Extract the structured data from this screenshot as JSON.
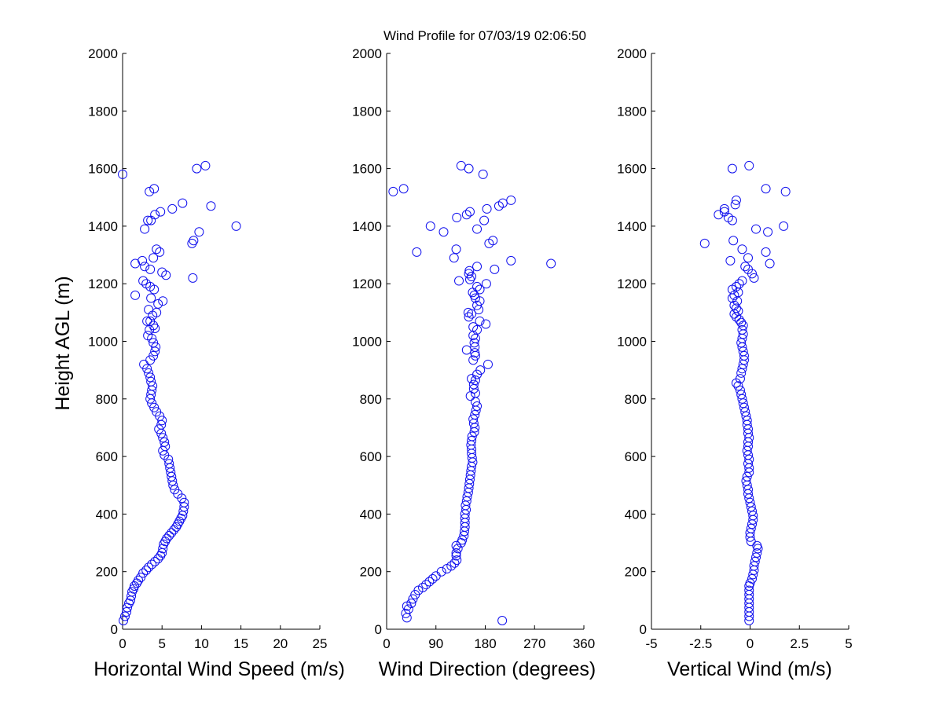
{
  "chart_data": [
    {
      "type": "scatter",
      "title": "Wind Profile for  07/03/19 02:06:50",
      "xlabel": "Horizontal Wind Speed (m/s)",
      "ylabel": "Height AGL (m)",
      "xlim": [
        0,
        25
      ],
      "ylim": [
        0,
        2000
      ],
      "xticks": [
        "0",
        "5",
        "10",
        "15",
        "20",
        "25"
      ],
      "yticks": [
        "0",
        "200",
        "400",
        "600",
        "800",
        "1000",
        "1200",
        "1400",
        "1600",
        "1800",
        "2000"
      ],
      "marker": "circle",
      "color": "#1010ee",
      "points": [
        [
          0.1,
          30
        ],
        [
          0.3,
          45
        ],
        [
          0.5,
          60
        ],
        [
          0.6,
          75
        ],
        [
          0.8,
          90
        ],
        [
          1.0,
          100
        ],
        [
          1.1,
          115
        ],
        [
          1.2,
          130
        ],
        [
          1.4,
          140
        ],
        [
          1.5,
          150
        ],
        [
          1.8,
          160
        ],
        [
          2.0,
          170
        ],
        [
          2.3,
          180
        ],
        [
          2.6,
          195
        ],
        [
          3.0,
          205
        ],
        [
          3.3,
          215
        ],
        [
          3.7,
          225
        ],
        [
          4.1,
          235
        ],
        [
          4.5,
          245
        ],
        [
          4.8,
          255
        ],
        [
          5.0,
          265
        ],
        [
          5.1,
          280
        ],
        [
          5.2,
          295
        ],
        [
          5.4,
          305
        ],
        [
          5.6,
          315
        ],
        [
          5.9,
          325
        ],
        [
          6.2,
          335
        ],
        [
          6.5,
          345
        ],
        [
          6.8,
          355
        ],
        [
          7.0,
          365
        ],
        [
          7.2,
          375
        ],
        [
          7.4,
          385
        ],
        [
          7.6,
          395
        ],
        [
          7.7,
          410
        ],
        [
          7.8,
          425
        ],
        [
          7.8,
          440
        ],
        [
          7.5,
          455
        ],
        [
          7.0,
          470
        ],
        [
          6.6,
          485
        ],
        [
          6.4,
          500
        ],
        [
          6.3,
          515
        ],
        [
          6.2,
          530
        ],
        [
          6.1,
          545
        ],
        [
          6.0,
          560
        ],
        [
          5.9,
          575
        ],
        [
          5.8,
          590
        ],
        [
          5.3,
          605
        ],
        [
          5.1,
          620
        ],
        [
          5.4,
          635
        ],
        [
          5.3,
          650
        ],
        [
          5.1,
          665
        ],
        [
          4.9,
          680
        ],
        [
          4.6,
          695
        ],
        [
          4.9,
          710
        ],
        [
          5.0,
          725
        ],
        [
          4.7,
          740
        ],
        [
          4.3,
          755
        ],
        [
          4.0,
          770
        ],
        [
          3.7,
          785
        ],
        [
          3.5,
          800
        ],
        [
          3.6,
          815
        ],
        [
          3.7,
          830
        ],
        [
          3.8,
          845
        ],
        [
          3.6,
          860
        ],
        [
          3.5,
          875
        ],
        [
          3.3,
          890
        ],
        [
          3.1,
          905
        ],
        [
          2.7,
          920
        ],
        [
          3.5,
          935
        ],
        [
          3.9,
          950
        ],
        [
          4.1,
          965
        ],
        [
          4.2,
          980
        ],
        [
          3.9,
          995
        ],
        [
          3.7,
          1010
        ],
        [
          3.2,
          1020
        ],
        [
          3.4,
          1040
        ],
        [
          4.1,
          1045
        ],
        [
          3.9,
          1055
        ],
        [
          3.5,
          1070
        ],
        [
          3.1,
          1070
        ],
        [
          3.8,
          1090
        ],
        [
          4.3,
          1100
        ],
        [
          3.3,
          1110
        ],
        [
          4.5,
          1130
        ],
        [
          5.1,
          1140
        ],
        [
          3.6,
          1150
        ],
        [
          1.6,
          1160
        ],
        [
          4.0,
          1180
        ],
        [
          3.5,
          1190
        ],
        [
          3.0,
          1200
        ],
        [
          2.6,
          1210
        ],
        [
          8.9,
          1220
        ],
        [
          5.5,
          1230
        ],
        [
          5.0,
          1240
        ],
        [
          3.5,
          1250
        ],
        [
          2.8,
          1260
        ],
        [
          1.6,
          1270
        ],
        [
          2.5,
          1280
        ],
        [
          3.9,
          1290
        ],
        [
          4.7,
          1310
        ],
        [
          4.3,
          1320
        ],
        [
          8.8,
          1340
        ],
        [
          9.0,
          1350
        ],
        [
          9.7,
          1380
        ],
        [
          2.8,
          1390
        ],
        [
          14.4,
          1400
        ],
        [
          3.6,
          1420
        ],
        [
          3.2,
          1420
        ],
        [
          4.1,
          1440
        ],
        [
          4.8,
          1450
        ],
        [
          6.3,
          1460
        ],
        [
          11.2,
          1470
        ],
        [
          7.6,
          1480
        ],
        [
          3.4,
          1520
        ],
        [
          4.0,
          1530
        ],
        [
          0.0,
          1580
        ],
        [
          9.4,
          1600
        ],
        [
          10.5,
          1610
        ]
      ]
    },
    {
      "type": "scatter",
      "xlabel": "Wind Direction (degrees)",
      "xlim": [
        0,
        360
      ],
      "ylim": [
        0,
        2000
      ],
      "xticks": [
        "0",
        "90",
        "180",
        "270",
        "360"
      ],
      "yticks": [
        "0",
        "200",
        "400",
        "600",
        "800",
        "1000",
        "1200",
        "1400",
        "1600",
        "1800",
        "2000"
      ],
      "marker": "circle",
      "color": "#1010ee",
      "points": [
        [
          211,
          30
        ],
        [
          37,
          40
        ],
        [
          35,
          55
        ],
        [
          40,
          70
        ],
        [
          37,
          80
        ],
        [
          45,
          90
        ],
        [
          48,
          105
        ],
        [
          52,
          120
        ],
        [
          58,
          135
        ],
        [
          66,
          145
        ],
        [
          72,
          155
        ],
        [
          78,
          165
        ],
        [
          84,
          175
        ],
        [
          90,
          185
        ],
        [
          100,
          200
        ],
        [
          110,
          210
        ],
        [
          118,
          220
        ],
        [
          124,
          230
        ],
        [
          128,
          240
        ],
        [
          127,
          255
        ],
        [
          127,
          265
        ],
        [
          130,
          280
        ],
        [
          127,
          290
        ],
        [
          136,
          300
        ],
        [
          138,
          310
        ],
        [
          141,
          325
        ],
        [
          142,
          340
        ],
        [
          143,
          355
        ],
        [
          143,
          370
        ],
        [
          143,
          385
        ],
        [
          143,
          400
        ],
        [
          145,
          415
        ],
        [
          144,
          430
        ],
        [
          146,
          445
        ],
        [
          147,
          460
        ],
        [
          149,
          475
        ],
        [
          150,
          490
        ],
        [
          151,
          505
        ],
        [
          152,
          520
        ],
        [
          153,
          535
        ],
        [
          154,
          550
        ],
        [
          155,
          565
        ],
        [
          157,
          580
        ],
        [
          156,
          595
        ],
        [
          155,
          610
        ],
        [
          155,
          625
        ],
        [
          154,
          640
        ],
        [
          155,
          655
        ],
        [
          156,
          670
        ],
        [
          160,
          685
        ],
        [
          161,
          700
        ],
        [
          159,
          715
        ],
        [
          158,
          730
        ],
        [
          161,
          745
        ],
        [
          163,
          760
        ],
        [
          165,
          775
        ],
        [
          162,
          790
        ],
        [
          153,
          810
        ],
        [
          162,
          820
        ],
        [
          159,
          835
        ],
        [
          159,
          850
        ],
        [
          162,
          865
        ],
        [
          155,
          870
        ],
        [
          165,
          885
        ],
        [
          171,
          900
        ],
        [
          185,
          920
        ],
        [
          158,
          935
        ],
        [
          162,
          950
        ],
        [
          161,
          960
        ],
        [
          146,
          970
        ],
        [
          161,
          980
        ],
        [
          160,
          995
        ],
        [
          162,
          1010
        ],
        [
          158,
          1020
        ],
        [
          165,
          1040
        ],
        [
          158,
          1050
        ],
        [
          181,
          1060
        ],
        [
          170,
          1070
        ],
        [
          150,
          1085
        ],
        [
          155,
          1095
        ],
        [
          149,
          1100
        ],
        [
          168,
          1110
        ],
        [
          165,
          1125
        ],
        [
          170,
          1140
        ],
        [
          162,
          1150
        ],
        [
          160,
          1160
        ],
        [
          157,
          1170
        ],
        [
          170,
          1180
        ],
        [
          165,
          1190
        ],
        [
          182,
          1200
        ],
        [
          132,
          1210
        ],
        [
          152,
          1215
        ],
        [
          155,
          1225
        ],
        [
          150,
          1235
        ],
        [
          151,
          1245
        ],
        [
          197,
          1250
        ],
        [
          165,
          1260
        ],
        [
          300,
          1270
        ],
        [
          227,
          1280
        ],
        [
          123,
          1290
        ],
        [
          55,
          1310
        ],
        [
          127,
          1320
        ],
        [
          187,
          1340
        ],
        [
          194,
          1350
        ],
        [
          104,
          1380
        ],
        [
          165,
          1390
        ],
        [
          80,
          1400
        ],
        [
          178,
          1420
        ],
        [
          128,
          1430
        ],
        [
          146,
          1440
        ],
        [
          152,
          1450
        ],
        [
          183,
          1460
        ],
        [
          205,
          1470
        ],
        [
          212,
          1480
        ],
        [
          227,
          1490
        ],
        [
          12,
          1520
        ],
        [
          31,
          1530
        ],
        [
          176,
          1580
        ],
        [
          150,
          1600
        ],
        [
          136,
          1610
        ]
      ]
    },
    {
      "type": "scatter",
      "xlabel": "Vertical Wind (m/s)",
      "xlim": [
        -5,
        5
      ],
      "ylim": [
        0,
        2000
      ],
      "xticks": [
        "-5",
        "-2.5",
        "0",
        "2.5",
        "5"
      ],
      "yticks": [
        "0",
        "200",
        "400",
        "600",
        "800",
        "1000",
        "1200",
        "1400",
        "1600",
        "1800",
        "2000"
      ],
      "marker": "circle",
      "color": "#1010ee",
      "points": [
        [
          -0.05,
          30
        ],
        [
          -0.05,
          45
        ],
        [
          -0.05,
          60
        ],
        [
          -0.05,
          75
        ],
        [
          -0.05,
          90
        ],
        [
          -0.05,
          105
        ],
        [
          -0.05,
          120
        ],
        [
          -0.05,
          135
        ],
        [
          -0.05,
          150
        ],
        [
          0.0,
          160
        ],
        [
          0.1,
          175
        ],
        [
          0.15,
          190
        ],
        [
          0.2,
          205
        ],
        [
          0.2,
          220
        ],
        [
          0.25,
          235
        ],
        [
          0.3,
          250
        ],
        [
          0.35,
          265
        ],
        [
          0.4,
          280
        ],
        [
          0.35,
          290
        ],
        [
          0.05,
          305
        ],
        [
          0.0,
          320
        ],
        [
          0.0,
          335
        ],
        [
          0.05,
          350
        ],
        [
          0.1,
          365
        ],
        [
          0.15,
          380
        ],
        [
          0.15,
          395
        ],
        [
          0.1,
          410
        ],
        [
          0.05,
          425
        ],
        [
          0.0,
          440
        ],
        [
          -0.05,
          455
        ],
        [
          -0.1,
          470
        ],
        [
          -0.1,
          485
        ],
        [
          -0.15,
          500
        ],
        [
          -0.2,
          515
        ],
        [
          -0.15,
          530
        ],
        [
          -0.05,
          545
        ],
        [
          -0.05,
          560
        ],
        [
          -0.1,
          575
        ],
        [
          -0.05,
          590
        ],
        [
          -0.1,
          605
        ],
        [
          -0.15,
          620
        ],
        [
          -0.1,
          635
        ],
        [
          -0.1,
          650
        ],
        [
          -0.05,
          665
        ],
        [
          -0.1,
          680
        ],
        [
          -0.1,
          695
        ],
        [
          -0.15,
          710
        ],
        [
          -0.15,
          725
        ],
        [
          -0.2,
          740
        ],
        [
          -0.25,
          755
        ],
        [
          -0.3,
          770
        ],
        [
          -0.35,
          785
        ],
        [
          -0.4,
          800
        ],
        [
          -0.45,
          815
        ],
        [
          -0.5,
          830
        ],
        [
          -0.6,
          845
        ],
        [
          -0.7,
          855
        ],
        [
          -0.5,
          870
        ],
        [
          -0.45,
          890
        ],
        [
          -0.4,
          905
        ],
        [
          -0.35,
          920
        ],
        [
          -0.3,
          935
        ],
        [
          -0.3,
          950
        ],
        [
          -0.35,
          965
        ],
        [
          -0.4,
          980
        ],
        [
          -0.45,
          995
        ],
        [
          -0.4,
          1010
        ],
        [
          -0.35,
          1025
        ],
        [
          -0.4,
          1040
        ],
        [
          -0.35,
          1055
        ],
        [
          -0.45,
          1065
        ],
        [
          -0.55,
          1075
        ],
        [
          -0.7,
          1085
        ],
        [
          -0.8,
          1095
        ],
        [
          -0.6,
          1105
        ],
        [
          -0.7,
          1115
        ],
        [
          -0.8,
          1125
        ],
        [
          -0.65,
          1140
        ],
        [
          -0.9,
          1150
        ],
        [
          -0.8,
          1160
        ],
        [
          -0.6,
          1170
        ],
        [
          -0.9,
          1180
        ],
        [
          -0.7,
          1190
        ],
        [
          -0.55,
          1200
        ],
        [
          -0.4,
          1210
        ],
        [
          0.2,
          1220
        ],
        [
          0.1,
          1235
        ],
        [
          -0.1,
          1250
        ],
        [
          -0.25,
          1260
        ],
        [
          1.0,
          1270
        ],
        [
          -1.0,
          1280
        ],
        [
          -0.1,
          1290
        ],
        [
          0.8,
          1310
        ],
        [
          -0.4,
          1320
        ],
        [
          -2.3,
          1340
        ],
        [
          -0.85,
          1350
        ],
        [
          0.9,
          1380
        ],
        [
          0.3,
          1390
        ],
        [
          1.7,
          1400
        ],
        [
          -0.9,
          1420
        ],
        [
          -1.1,
          1430
        ],
        [
          -1.6,
          1440
        ],
        [
          -1.3,
          1450
        ],
        [
          -1.3,
          1460
        ],
        [
          -0.75,
          1475
        ],
        [
          -0.7,
          1490
        ],
        [
          1.8,
          1520
        ],
        [
          0.8,
          1530
        ],
        [
          -0.9,
          1600
        ],
        [
          -0.05,
          1610
        ]
      ]
    }
  ]
}
